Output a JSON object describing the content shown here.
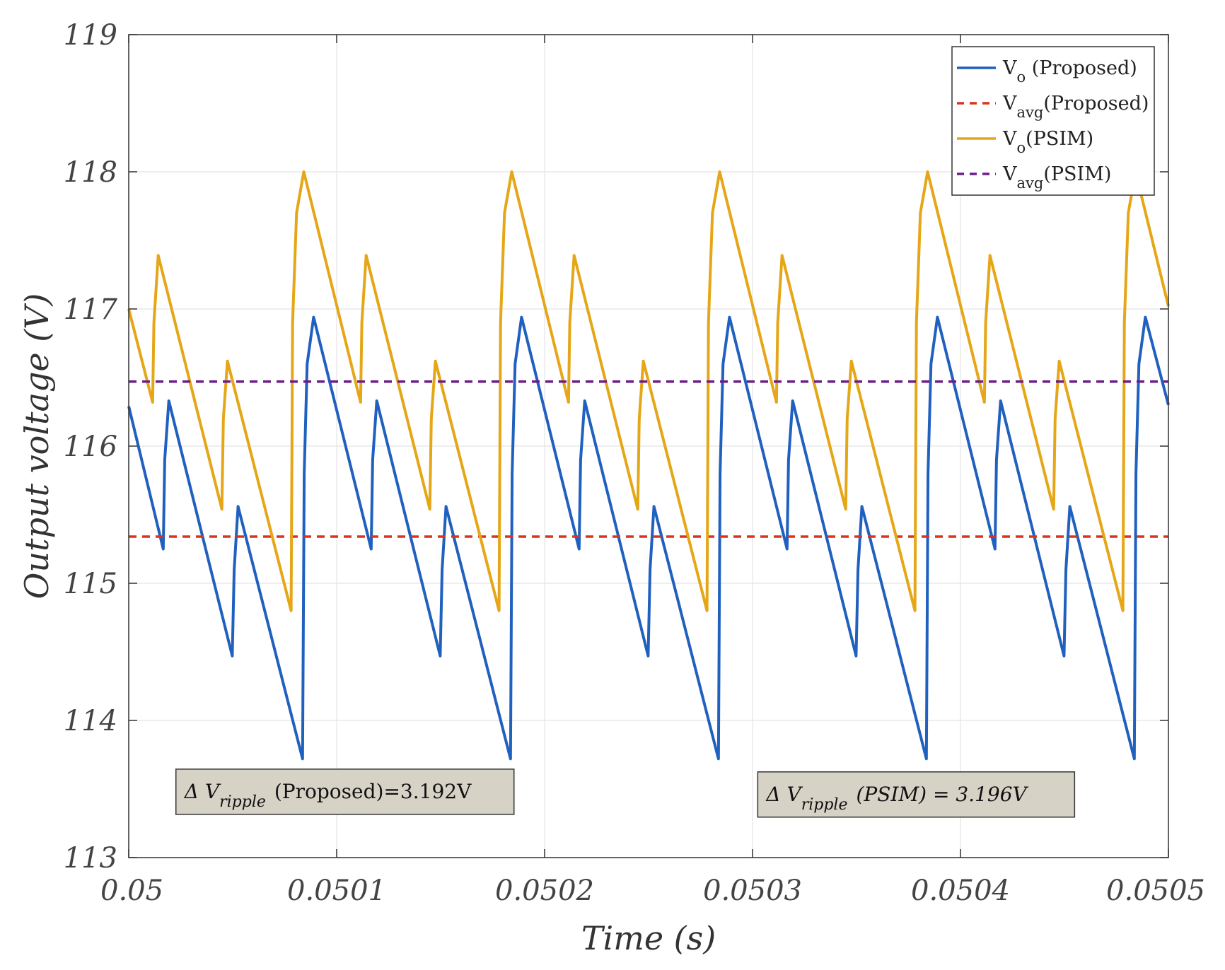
{
  "chart_data": {
    "type": "line",
    "xlabel": "Time (s)",
    "ylabel": "Output voltage (V)",
    "xlim": [
      0.05,
      0.0505
    ],
    "ylim": [
      113,
      119
    ],
    "grid": true,
    "x_ticks": [
      "0.05",
      "0.0501",
      "0.0502",
      "0.0503",
      "0.0504",
      "0.0505"
    ],
    "y_ticks": [
      "113",
      "114",
      "115",
      "116",
      "117",
      "118",
      "119"
    ],
    "legend_position": "top-right",
    "legend": [
      {
        "main": "V",
        "sub": "o",
        "suffix": " (Proposed)",
        "color": "#2060BF",
        "style": "solid"
      },
      {
        "main": "V",
        "sub": "avg",
        "suffix": "(Proposed)",
        "color": "#D9341E",
        "style": "dashed"
      },
      {
        "main": "V",
        "sub": "o",
        "suffix": "(PSIM)",
        "color": "#E5A617",
        "style": "solid"
      },
      {
        "main": "V",
        "sub": "avg",
        "suffix": "(PSIM)",
        "color": "#6B1E8A",
        "style": "dashed"
      }
    ],
    "series": [
      {
        "name": "Vo (Proposed)",
        "color": "#2060BF",
        "style": "solid",
        "x": [
          0.05,
          0.0500166,
          0.0500173,
          0.0500193,
          0.0500498,
          0.0500507,
          0.0500526,
          0.0500836,
          0.0500844,
          0.0500858,
          0.0500889,
          0.0501166,
          0.0501173,
          0.0501193,
          0.0501498,
          0.0501507,
          0.0501526,
          0.0501836,
          0.0501844,
          0.0501858,
          0.0501889,
          0.0502166,
          0.0502173,
          0.0502193,
          0.0502498,
          0.0502507,
          0.0502526,
          0.0502836,
          0.0502844,
          0.0502858,
          0.0502889,
          0.0503166,
          0.0503173,
          0.0503193,
          0.0503498,
          0.0503507,
          0.0503526,
          0.0503836,
          0.0503844,
          0.0503858,
          0.0503889,
          0.0504166,
          0.0504173,
          0.0504193,
          0.0504498,
          0.0504507,
          0.0504526,
          0.0504836,
          0.0504844,
          0.0504858,
          0.0504889,
          0.0505
        ],
        "y": [
          116.29,
          115.25,
          115.9,
          116.33,
          114.47,
          115.1,
          115.56,
          113.72,
          115.8,
          116.6,
          116.94,
          115.25,
          115.9,
          116.33,
          114.47,
          115.1,
          115.56,
          113.72,
          115.8,
          116.6,
          116.94,
          115.25,
          115.9,
          116.33,
          114.47,
          115.1,
          115.56,
          113.72,
          115.8,
          116.6,
          116.94,
          115.25,
          115.9,
          116.33,
          114.47,
          115.1,
          115.56,
          113.72,
          115.8,
          116.6,
          116.94,
          115.25,
          115.9,
          116.33,
          114.47,
          115.1,
          115.56,
          113.72,
          115.8,
          116.6,
          116.94,
          116.3
        ]
      },
      {
        "name": "Vavg (Proposed)",
        "color": "#D9341E",
        "style": "dashed",
        "x": [
          0.05,
          0.0505
        ],
        "y": [
          115.34,
          115.34
        ]
      },
      {
        "name": "Vo (PSIM)",
        "color": "#E5A617",
        "style": "solid",
        "x": [
          0.05,
          0.0500115,
          0.0500121,
          0.0500142,
          0.0500448,
          0.0500455,
          0.0500475,
          0.0500781,
          0.0500788,
          0.0500807,
          0.0500842,
          0.0501115,
          0.0501121,
          0.0501142,
          0.0501448,
          0.0501455,
          0.0501475,
          0.0501781,
          0.0501788,
          0.0501807,
          0.0501842,
          0.0502115,
          0.0502121,
          0.0502142,
          0.0502448,
          0.0502455,
          0.0502475,
          0.0502781,
          0.0502788,
          0.0502807,
          0.0502842,
          0.0503115,
          0.0503121,
          0.0503142,
          0.0503448,
          0.0503455,
          0.0503475,
          0.0503781,
          0.0503788,
          0.0503807,
          0.0503842,
          0.0504115,
          0.0504121,
          0.0504142,
          0.0504448,
          0.0504455,
          0.0504475,
          0.0504781,
          0.0504788,
          0.0504807,
          0.0504842,
          0.0505
        ],
        "y": [
          117.0,
          116.32,
          116.9,
          117.39,
          115.54,
          116.2,
          116.62,
          114.8,
          116.9,
          117.7,
          118.0,
          116.32,
          116.9,
          117.39,
          115.54,
          116.2,
          116.62,
          114.8,
          116.9,
          117.7,
          118.0,
          116.32,
          116.9,
          117.39,
          115.54,
          116.2,
          116.62,
          114.8,
          116.9,
          117.7,
          118.0,
          116.32,
          116.9,
          117.39,
          115.54,
          116.2,
          116.62,
          114.8,
          116.9,
          117.7,
          118.0,
          116.32,
          116.9,
          117.39,
          115.54,
          116.2,
          116.62,
          114.8,
          116.9,
          117.7,
          118.0,
          117.02
        ]
      },
      {
        "name": "Vavg (PSIM)",
        "color": "#6B1E8A",
        "style": "dashed",
        "x": [
          0.05,
          0.0505
        ],
        "y": [
          116.47,
          116.47
        ]
      }
    ],
    "annotations": [
      {
        "delta": "Δ",
        "var": "V",
        "sub": "ripple",
        "text": "(Proposed)=3.192V",
        "at": [
          0.0500227,
          113.48
        ]
      },
      {
        "delta": "Δ",
        "var": "V",
        "sub": "ripple",
        "text": "(PSIM) = 3.196V",
        "at": [
          0.0503025,
          113.46
        ]
      }
    ]
  }
}
